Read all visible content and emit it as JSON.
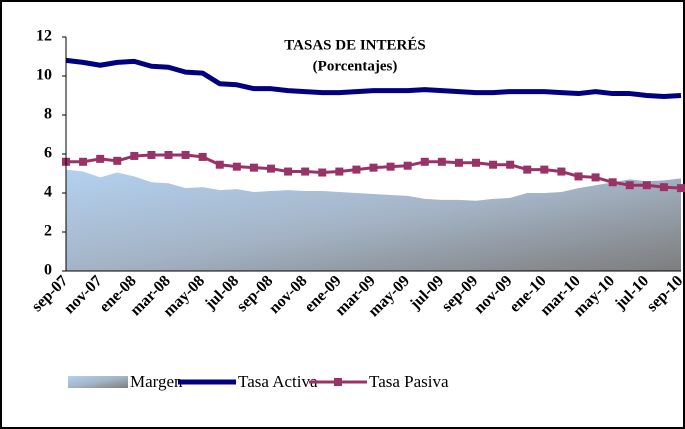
{
  "chart_data": {
    "type": "line",
    "title": "TASAS DE INTERÉS",
    "subtitle": "(Porcentajes)",
    "categories": [
      "sep-07",
      null,
      "nov-07",
      null,
      "ene-08",
      null,
      "mar-08",
      null,
      "may-08",
      null,
      "jul-08",
      null,
      "sep-08",
      null,
      "nov-08",
      null,
      "ene-09",
      null,
      "mar-09",
      null,
      "may-09",
      null,
      "jul-09",
      null,
      "sep-09",
      null,
      "nov-09",
      null,
      "ene-10",
      null,
      "mar-10",
      null,
      "may-10",
      null,
      "jul-10",
      null,
      "sep-10"
    ],
    "series": [
      {
        "name": "Margen",
        "style": "area",
        "color": "#a9c7e8",
        "values": [
          5.2,
          5.1,
          4.8,
          5.05,
          4.85,
          4.55,
          4.5,
          4.25,
          4.3,
          4.15,
          4.2,
          4.05,
          4.1,
          4.15,
          4.1,
          4.1,
          4.05,
          4.0,
          3.95,
          3.9,
          3.85,
          3.7,
          3.65,
          3.65,
          3.6,
          3.7,
          3.75,
          4.0,
          4.0,
          4.05,
          4.25,
          4.4,
          4.55,
          4.7,
          4.6,
          4.65,
          4.75
        ]
      },
      {
        "name": "Tasa Activa",
        "style": "line",
        "color": "#000080",
        "values": [
          10.8,
          10.7,
          10.55,
          10.7,
          10.75,
          10.5,
          10.45,
          10.2,
          10.15,
          9.6,
          9.55,
          9.35,
          9.35,
          9.25,
          9.2,
          9.15,
          9.15,
          9.2,
          9.25,
          9.25,
          9.25,
          9.3,
          9.25,
          9.2,
          9.15,
          9.15,
          9.2,
          9.2,
          9.2,
          9.15,
          9.1,
          9.2,
          9.1,
          9.1,
          9.0,
          8.95,
          9.0
        ]
      },
      {
        "name": "Tasa Pasiva",
        "style": "line",
        "marker": "square",
        "color": "#993366",
        "values": [
          5.6,
          5.6,
          5.75,
          5.65,
          5.9,
          5.95,
          5.95,
          5.95,
          5.85,
          5.45,
          5.35,
          5.3,
          5.25,
          5.1,
          5.1,
          5.05,
          5.1,
          5.2,
          5.3,
          5.35,
          5.4,
          5.6,
          5.6,
          5.55,
          5.55,
          5.45,
          5.45,
          5.2,
          5.2,
          5.1,
          4.85,
          4.8,
          4.55,
          4.4,
          4.4,
          4.3,
          4.25
        ]
      }
    ],
    "ylim": [
      0,
      12
    ],
    "yticks": [
      0,
      2,
      4,
      6,
      8,
      10,
      12
    ],
    "grid": false,
    "legend": "bottom"
  }
}
